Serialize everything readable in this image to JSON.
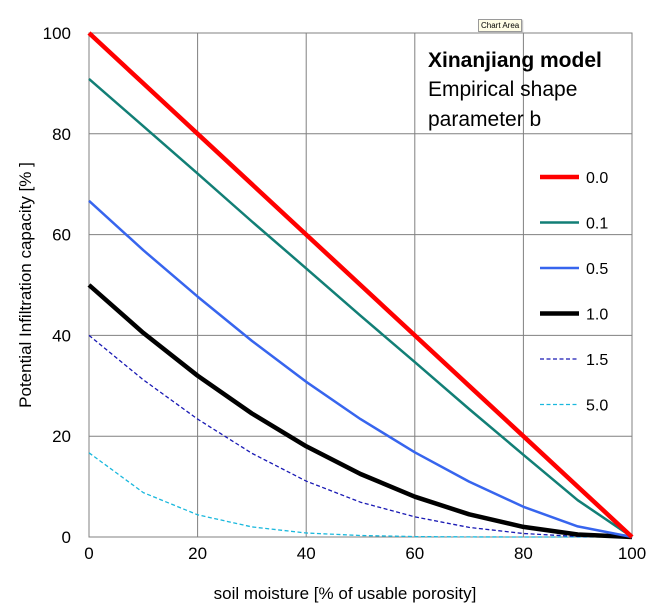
{
  "tooltip": "Chart Area",
  "chart_data": {
    "type": "line",
    "title_lines": [
      "Xinanjiang model",
      "Empirical shape",
      "parameter  b"
    ],
    "xlabel": "soil moisture [% of usable porosity]",
    "ylabel": "Potential Infiltration capacity  [% ]",
    "xlim": [
      0,
      100
    ],
    "ylim": [
      0,
      100
    ],
    "xticks": [
      0,
      20,
      40,
      60,
      80,
      100
    ],
    "yticks": [
      0,
      20,
      40,
      60,
      80,
      100
    ],
    "grid": true,
    "legend_position": "right",
    "x": [
      0,
      10,
      20,
      30,
      40,
      50,
      60,
      70,
      80,
      90,
      100
    ],
    "series": [
      {
        "name": "0.0",
        "color": "#ff0000",
        "style": "solid-thick",
        "values": [
          100,
          90,
          80,
          70,
          60,
          50,
          40,
          30,
          20,
          10,
          0
        ]
      },
      {
        "name": "0.1",
        "color": "#127f76",
        "style": "solid",
        "values": [
          90.9,
          81.5,
          72.1,
          62.6,
          53.3,
          43.9,
          34.7,
          25.4,
          16.3,
          7.3,
          0
        ]
      },
      {
        "name": "0.5",
        "color": "#3765ee",
        "style": "solid",
        "values": [
          66.7,
          56.9,
          47.7,
          38.9,
          30.8,
          23.4,
          16.8,
          11.0,
          6.0,
          2.1,
          0
        ]
      },
      {
        "name": "1.0",
        "color": "#000000",
        "style": "solid-thick",
        "values": [
          50,
          40.5,
          32,
          24.5,
          18,
          12.5,
          8,
          4.5,
          2,
          0.5,
          0
        ]
      },
      {
        "name": "1.5",
        "color": "#1919b4",
        "style": "dashed",
        "values": [
          40,
          31.2,
          23.4,
          16.6,
          11.1,
          6.9,
          4.0,
          1.9,
          0.7,
          0.1,
          0
        ]
      },
      {
        "name": "5.0",
        "color": "#19b8dd",
        "style": "dashed",
        "values": [
          16.7,
          8.8,
          4.4,
          2.0,
          0.8,
          0.3,
          0.07,
          0.01,
          0,
          0,
          0
        ]
      }
    ]
  }
}
